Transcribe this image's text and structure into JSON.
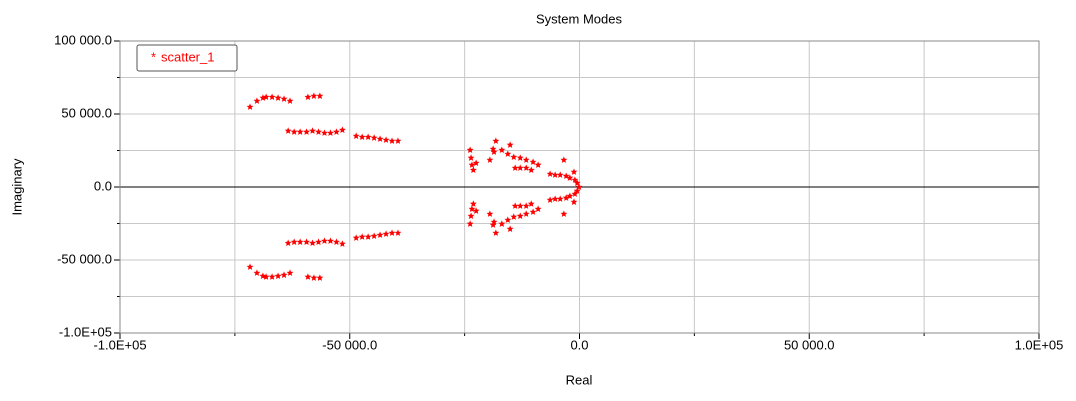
{
  "chart_data": {
    "type": "scatter",
    "title": "System Modes",
    "x_label": "Real",
    "y_label": "Imaginary",
    "xlim": [
      -100000,
      100000
    ],
    "ylim": [
      -100000,
      100000
    ],
    "xticks": [
      {
        "value": -100000,
        "label": "-1.0E+05"
      },
      {
        "value": -50000,
        "label": "-50 000.0"
      },
      {
        "value": 0,
        "label": "0.0"
      },
      {
        "value": 50000,
        "label": "50 000.0"
      },
      {
        "value": 100000,
        "label": "1.0E+05"
      }
    ],
    "yticks": [
      {
        "value": -100000,
        "label": "-1.0E+05"
      },
      {
        "value": -50000,
        "label": "-50 000.0"
      },
      {
        "value": 0,
        "label": "0.0"
      },
      {
        "value": 50000,
        "label": "50 000.0"
      },
      {
        "value": 100000,
        "label": "100 000.0"
      }
    ],
    "xminor": [
      -75000,
      -25000,
      25000,
      75000
    ],
    "yminor": [
      -75000,
      -25000,
      25000,
      75000
    ],
    "grid": true,
    "legend": "upper left",
    "series": [
      {
        "name": "scatter_1",
        "marker": "*",
        "color": "#ff0000",
        "x": [
          -71700,
          -70200,
          -68900,
          -68200,
          -66900,
          -65600,
          -64300,
          -63000,
          -59100,
          -57800,
          -56500,
          -63400,
          -62100,
          -60800,
          -59400,
          -58100,
          -56800,
          -55500,
          -54200,
          -52900,
          -51600,
          -48600,
          -47300,
          -46000,
          -44700,
          -43400,
          -42100,
          -40800,
          -39500,
          -23800,
          -23600,
          -23400,
          -23100,
          -22500,
          -19500,
          -18600,
          -18200,
          -16900,
          -15600,
          -14300,
          -12900,
          -11600,
          -10100,
          -9000,
          -18800,
          -15100,
          -14000,
          -12900,
          -11600,
          -10500,
          -6400,
          -5300,
          -4200,
          -3400,
          -2900,
          -2100,
          -1200,
          -1000,
          -500,
          -100,
          -71700,
          -70200,
          -68900,
          -68200,
          -66900,
          -65600,
          -64300,
          -63000,
          -59100,
          -57800,
          -56500,
          -63400,
          -62100,
          -60800,
          -59400,
          -58100,
          -56800,
          -55500,
          -54200,
          -52900,
          -51600,
          -48600,
          -47300,
          -46000,
          -44700,
          -43400,
          -42100,
          -40800,
          -39500,
          -23800,
          -23600,
          -23400,
          -23100,
          -22500,
          -19500,
          -18600,
          -18200,
          -16900,
          -15600,
          -14300,
          -12900,
          -11600,
          -10100,
          -9000,
          -18800,
          -15100,
          -14000,
          -12900,
          -11600,
          -10500,
          -6400,
          -5300,
          -4200,
          -3400,
          -2900,
          -2100,
          -1200,
          -1000,
          -500
        ],
        "y": [
          54800,
          58900,
          61000,
          61600,
          61600,
          61000,
          60300,
          58900,
          61600,
          62300,
          62300,
          38400,
          37700,
          37700,
          37700,
          38400,
          37700,
          37000,
          37000,
          37700,
          39000,
          34900,
          34200,
          34200,
          33600,
          32900,
          32200,
          31500,
          31500,
          25300,
          19900,
          15100,
          11600,
          16400,
          18500,
          24000,
          31500,
          25300,
          22600,
          20500,
          19900,
          18500,
          17100,
          15100,
          26000,
          28800,
          13000,
          13000,
          13000,
          11600,
          8900,
          8200,
          8200,
          18500,
          7500,
          6200,
          10300,
          4800,
          2700,
          0,
          -54800,
          -58900,
          -61000,
          -61600,
          -61600,
          -61000,
          -60300,
          -58900,
          -61600,
          -62300,
          -62300,
          -38400,
          -37700,
          -37700,
          -37700,
          -38400,
          -37700,
          -37000,
          -37000,
          -37700,
          -39000,
          -34900,
          -34200,
          -34200,
          -33600,
          -32900,
          -32200,
          -31500,
          -31500,
          -25300,
          -19900,
          -15100,
          -11600,
          -16400,
          -18500,
          -24000,
          -31500,
          -25300,
          -22600,
          -20500,
          -19900,
          -18500,
          -17100,
          -15100,
          -26000,
          -28800,
          -13000,
          -13000,
          -13000,
          -11600,
          -8900,
          -8200,
          -8200,
          -18500,
          -7500,
          -6200,
          -10300,
          -4800,
          -2700
        ]
      }
    ]
  }
}
